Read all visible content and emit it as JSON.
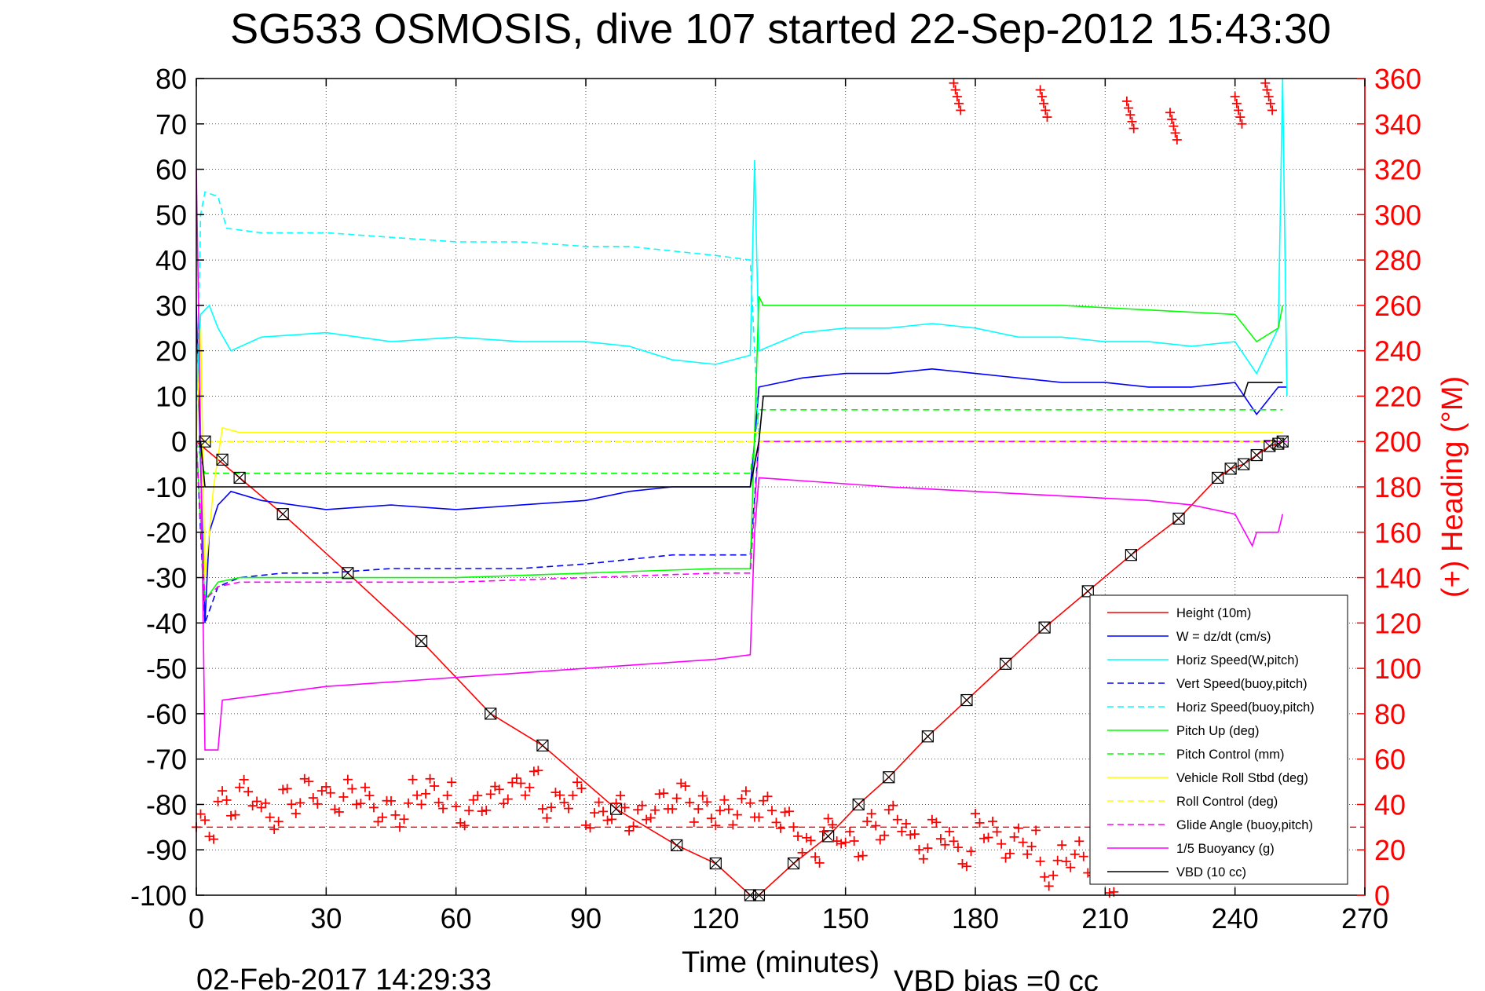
{
  "chart_data": {
    "type": "line",
    "title": "SG533 OSMOSIS, dive 107 started 22-Sep-2012 15:43:30",
    "xlabel": "Time (minutes)",
    "ylabel": "",
    "y2label": "(+) Heading (°M)",
    "footer_left": "02-Feb-2017 14:29:33",
    "footer_right": "VBD bias =0 cc",
    "xlim": [
      0,
      270
    ],
    "ylim": [
      -100,
      80
    ],
    "y2lim": [
      0,
      360
    ],
    "grid": true,
    "legend_position": "bottom-right",
    "x_ticks": [
      "0",
      "30",
      "60",
      "90",
      "120",
      "150",
      "180",
      "210",
      "240",
      "270"
    ],
    "y_ticks": [
      "80",
      "70",
      "60",
      "50",
      "40",
      "30",
      "20",
      "10",
      "0",
      "-10",
      "-20",
      "-30",
      "-40",
      "-50",
      "-60",
      "-70",
      "-80",
      "-90",
      "-100"
    ],
    "y2_ticks": [
      "360",
      "340",
      "320",
      "300",
      "280",
      "260",
      "240",
      "220",
      "200",
      "180",
      "160",
      "140",
      "120",
      "100",
      "80",
      "60",
      "40",
      "20",
      "0"
    ],
    "colors": {
      "height": "#ff0000",
      "w": "#0000ff",
      "horiz_speed": "#00ffff",
      "pitch": "#00ff00",
      "roll": "#ffff00",
      "glide": "#ff00ff",
      "buoyancy": "#ff00ff",
      "vbd": "#000000",
      "heading": "#ff0000"
    },
    "series": [
      {
        "name": "Height (10m)",
        "color": "#ff0000",
        "dash": "solid",
        "x": [
          0,
          5,
          10,
          20,
          35,
          52,
          68,
          80,
          97,
          111,
          120,
          128,
          130,
          138,
          146,
          153,
          160,
          169,
          178,
          187,
          196,
          206,
          216,
          227,
          236,
          239,
          242,
          245,
          248,
          250,
          251
        ],
        "y": [
          0,
          -4,
          -8,
          -16,
          -29,
          -44,
          -60,
          -67,
          -81,
          -89,
          -93,
          -100,
          -100,
          -93,
          -87,
          -80,
          -74,
          -65,
          -57,
          -49,
          -41,
          -33,
          -25,
          -17,
          -8,
          -6,
          -5,
          -3,
          -1,
          -0.5,
          0
        ]
      },
      {
        "name": "W = dz/dt (cm/s)",
        "color": "#0000ff",
        "dash": "solid",
        "x": [
          0,
          1,
          2,
          3,
          5,
          8,
          15,
          30,
          45,
          60,
          75,
          90,
          100,
          110,
          120,
          128,
          129,
          130,
          140,
          150,
          160,
          170,
          180,
          190,
          200,
          210,
          220,
          230,
          240,
          245,
          250,
          252
        ],
        "y": [
          30,
          -5,
          -40,
          -20,
          -14,
          -11,
          -13,
          -15,
          -14,
          -15,
          -14,
          -13,
          -11,
          -10,
          -10,
          -10,
          0,
          12,
          14,
          15,
          15,
          16,
          15,
          14,
          13,
          13,
          12,
          12,
          13,
          6,
          12,
          12
        ]
      },
      {
        "name": "Horiz Speed(W,pitch)",
        "color": "#00ffff",
        "dash": "solid",
        "x": [
          0,
          1,
          3,
          5,
          8,
          15,
          30,
          45,
          60,
          75,
          90,
          100,
          110,
          120,
          128,
          129,
          130,
          140,
          150,
          160,
          170,
          180,
          190,
          200,
          210,
          220,
          230,
          240,
          245,
          250,
          251,
          252
        ],
        "y": [
          10,
          28,
          30,
          25,
          20,
          23,
          24,
          22,
          23,
          22,
          22,
          21,
          18,
          17,
          19,
          62,
          20,
          24,
          25,
          25,
          26,
          25,
          23,
          23,
          22,
          22,
          21,
          22,
          15,
          25,
          80,
          10
        ]
      },
      {
        "name": "Vert Speed(buoy,pitch)",
        "color": "#0000ff",
        "dash": "dashed",
        "x": [
          0,
          2,
          5,
          10,
          20,
          30,
          45,
          60,
          75,
          90,
          100,
          110,
          120,
          128,
          130,
          252
        ],
        "y": [
          0,
          -40,
          -32,
          -30,
          -29,
          -29,
          -28,
          -28,
          -28,
          -27,
          -26,
          -25,
          -25,
          -25,
          0,
          0
        ]
      },
      {
        "name": "Horiz Speed(buoy,pitch)",
        "color": "#00ffff",
        "dash": "dashed",
        "x": [
          0,
          1,
          2,
          5,
          7,
          15,
          30,
          45,
          60,
          75,
          90,
          100,
          110,
          120,
          128,
          130,
          252
        ],
        "y": [
          0,
          50,
          55,
          54,
          47,
          46,
          46,
          45,
          44,
          44,
          43,
          43,
          42,
          41,
          40,
          0,
          0
        ]
      },
      {
        "name": "Pitch Up (deg)",
        "color": "#00ff00",
        "dash": "solid",
        "x": [
          0,
          2,
          5,
          10,
          30,
          60,
          90,
          120,
          128,
          130,
          131,
          140,
          160,
          180,
          200,
          220,
          240,
          245,
          250,
          251
        ],
        "y": [
          0,
          -35,
          -31,
          -30,
          -30,
          -30,
          -29,
          -28,
          -28,
          32,
          30,
          30,
          30,
          30,
          30,
          29,
          28,
          22,
          25,
          30
        ]
      },
      {
        "name": "Pitch Control (mm)",
        "color": "#00ff00",
        "dash": "dashed",
        "x": [
          0,
          2,
          3,
          5,
          20,
          40,
          60,
          80,
          100,
          120,
          128,
          130,
          131,
          160,
          200,
          251
        ],
        "y": [
          0,
          -7,
          -7,
          -7,
          -7,
          -7,
          -7,
          -7,
          -7,
          -7,
          -7,
          7,
          7,
          7,
          7,
          7
        ]
      },
      {
        "name": "Vehicle Roll Stbd (deg)",
        "color": "#ffff00",
        "dash": "solid",
        "x": [
          0,
          1,
          2,
          4,
          6,
          10,
          30,
          60,
          90,
          120,
          128,
          130,
          160,
          190,
          220,
          251
        ],
        "y": [
          0,
          25,
          -30,
          -10,
          3,
          2,
          2,
          2,
          2,
          2,
          2,
          2,
          2,
          2,
          2,
          2
        ]
      },
      {
        "name": "Roll Control (deg)",
        "color": "#ffff00",
        "dash": "dashed",
        "x": [
          0,
          252
        ],
        "y": [
          0,
          0
        ]
      },
      {
        "name": "Glide Angle (buoy,pitch)",
        "color": "#ff00ff",
        "dash": "dashed",
        "x": [
          0,
          2,
          5,
          10,
          30,
          60,
          90,
          120,
          128,
          130,
          252
        ],
        "y": [
          0,
          -35,
          -32,
          -31,
          -31,
          -31,
          -30,
          -29,
          -29,
          0,
          0
        ]
      },
      {
        "name": "1/5 Buoyancy (g)",
        "color": "#ff00ff",
        "dash": "solid",
        "x": [
          0,
          1,
          2,
          5,
          6,
          30,
          60,
          90,
          120,
          128,
          129,
          130,
          160,
          180,
          200,
          220,
          230,
          240,
          244,
          245,
          250,
          251
        ],
        "y": [
          60,
          0,
          -68,
          -68,
          -57,
          -54,
          -52,
          -50,
          -48,
          -47,
          -20,
          -8,
          -10,
          -11,
          -12,
          -13,
          -14,
          -16,
          -23,
          -20,
          -20,
          -16
        ]
      },
      {
        "name": "VBD (10 cc)",
        "color": "#000000",
        "dash": "solid",
        "x": [
          0,
          1,
          2,
          3,
          30,
          60,
          90,
          120,
          128,
          129,
          130,
          131,
          140,
          160,
          180,
          200,
          220,
          240,
          242,
          243,
          250,
          251
        ],
        "y": [
          0,
          0,
          -10,
          -10,
          -10,
          -10,
          -10,
          -10,
          -10,
          -5,
          0,
          10,
          10,
          10,
          10,
          10,
          10,
          10,
          10,
          13,
          13,
          13
        ]
      }
    ],
    "heading_series": {
      "name": "Heading (°M)",
      "axis": "right",
      "marker": "+",
      "color": "#ff0000",
      "x": [
        0,
        5,
        10,
        15,
        20,
        25,
        30,
        35,
        40,
        45,
        50,
        55,
        60,
        65,
        70,
        75,
        80,
        85,
        90,
        95,
        100,
        105,
        110,
        115,
        120,
        125,
        130,
        135,
        140,
        145,
        150,
        155,
        160,
        165,
        170,
        175,
        180,
        185,
        190,
        195,
        200,
        205,
        210
      ],
      "y": [
        30,
        40,
        45,
        35,
        42,
        46,
        42,
        45,
        38,
        36,
        46,
        44,
        36,
        42,
        46,
        50,
        40,
        44,
        35,
        38,
        34,
        40,
        44,
        38,
        36,
        40,
        38,
        32,
        20,
        28,
        22,
        30,
        34,
        22,
        28,
        18,
        30,
        22,
        24,
        10,
        18,
        14,
        6
      ],
      "reference_line": 30
    },
    "heading_top": {
      "x": [
        175,
        195,
        215,
        225,
        240,
        247
      ],
      "y": [
        358,
        355,
        350,
        345,
        352,
        358
      ]
    },
    "markers": {
      "type": "triangle-box",
      "on_series": "Height (10m)",
      "x": [
        2,
        6,
        10,
        20,
        35,
        52,
        68,
        80,
        97,
        111,
        120,
        128,
        130,
        138,
        146,
        153,
        160,
        169,
        178,
        187,
        196,
        206,
        216,
        227,
        236,
        239,
        242,
        245,
        248,
        250,
        251
      ],
      "y": [
        0,
        -4,
        -8,
        -16,
        -29,
        -44,
        -60,
        -67,
        -81,
        -89,
        -93,
        -100,
        -100,
        -93,
        -87,
        -80,
        -74,
        -65,
        -57,
        -49,
        -41,
        -33,
        -25,
        -17,
        -8,
        -6,
        -5,
        -3,
        -1,
        -0.5,
        0
      ]
    }
  }
}
